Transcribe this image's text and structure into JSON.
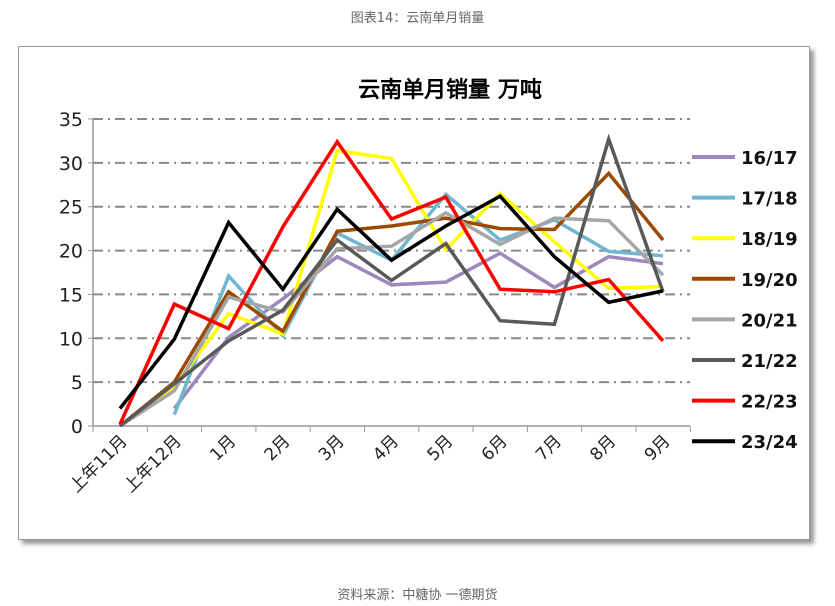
{
  "caption": "图表14：云南单月销量",
  "source": "资料来源：中糖协 一德期货",
  "chart_data": {
    "type": "line",
    "title": "云南单月销量 万吨",
    "xlabel": "",
    "ylabel": "",
    "ylim": [
      0,
      35
    ],
    "yticks": [
      0,
      5,
      10,
      15,
      20,
      25,
      30,
      35
    ],
    "grid": true,
    "legend": "right",
    "categories": [
      "上年11月",
      "上年12月",
      "1月",
      "2月",
      "3月",
      "4月",
      "5月",
      "6月",
      "7月",
      "8月",
      "9月"
    ],
    "series": [
      {
        "name": "16/17",
        "color": "#9b88bd",
        "values": [
          null,
          2.0,
          10.1,
          14.5,
          19.3,
          16.1,
          16.4,
          19.7,
          15.8,
          19.3,
          18.5
        ]
      },
      {
        "name": "17/18",
        "color": "#6fb7d0",
        "values": [
          null,
          1.3,
          17.1,
          10.3,
          22.0,
          18.9,
          26.4,
          21.2,
          23.5,
          19.9,
          19.4
        ]
      },
      {
        "name": "18/19",
        "color": "#ffff00",
        "values": [
          0,
          4.5,
          12.8,
          10.5,
          31.4,
          30.5,
          20.1,
          26.5,
          21.0,
          15.7,
          15.9
        ]
      },
      {
        "name": "19/20",
        "color": "#9c4a00",
        "values": [
          0,
          5.0,
          15.3,
          10.8,
          22.2,
          22.8,
          23.7,
          22.5,
          22.4,
          28.8,
          21.2
        ]
      },
      {
        "name": "20/21",
        "color": "#a6a6a6",
        "values": [
          0,
          4.0,
          14.7,
          13.0,
          20.2,
          20.5,
          24.3,
          20.7,
          23.7,
          23.4,
          17.2
        ]
      },
      {
        "name": "21/22",
        "color": "#595959",
        "values": [
          0,
          4.8,
          9.7,
          13.2,
          21.2,
          16.6,
          20.8,
          12.0,
          11.6,
          32.7,
          15.3
        ]
      },
      {
        "name": "22/23",
        "color": "#ff0000",
        "values": [
          0.2,
          13.9,
          11.1,
          22.7,
          32.4,
          23.6,
          26.1,
          15.6,
          15.3,
          16.7,
          9.7
        ]
      },
      {
        "name": "23/24",
        "color": "#000000",
        "values": [
          2.0,
          9.9,
          23.2,
          15.6,
          24.7,
          18.9,
          22.8,
          26.2,
          19.3,
          14.1,
          15.4
        ]
      }
    ]
  }
}
